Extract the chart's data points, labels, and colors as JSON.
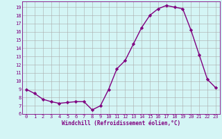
{
  "x": [
    0,
    1,
    2,
    3,
    4,
    5,
    6,
    7,
    8,
    9,
    10,
    11,
    12,
    13,
    14,
    15,
    16,
    17,
    18,
    19,
    20,
    21,
    22,
    23
  ],
  "y": [
    9.0,
    8.5,
    7.8,
    7.5,
    7.3,
    7.4,
    7.5,
    7.5,
    6.5,
    7.0,
    9.0,
    11.5,
    12.5,
    14.5,
    16.5,
    18.0,
    18.8,
    19.2,
    19.0,
    18.8,
    16.2,
    13.2,
    10.2,
    9.2
  ],
  "line_color": "#800080",
  "marker": "D",
  "marker_size": 2.2,
  "background_color": "#d4f5f5",
  "grid_color": "#aaaaaa",
  "xlabel": "Windchill (Refroidissement éolien,°C)",
  "ylabel": "",
  "title": "",
  "xlim": [
    -0.5,
    23.5
  ],
  "ylim": [
    6.0,
    19.7
  ],
  "yticks": [
    6,
    7,
    8,
    9,
    10,
    11,
    12,
    13,
    14,
    15,
    16,
    17,
    18,
    19
  ],
  "xticks": [
    0,
    1,
    2,
    3,
    4,
    5,
    6,
    7,
    8,
    9,
    10,
    11,
    12,
    13,
    14,
    15,
    16,
    17,
    18,
    19,
    20,
    21,
    22,
    23
  ],
  "font_color": "#800080",
  "line_width": 1.0,
  "tick_fontsize": 5.0,
  "xlabel_fontsize": 5.5
}
